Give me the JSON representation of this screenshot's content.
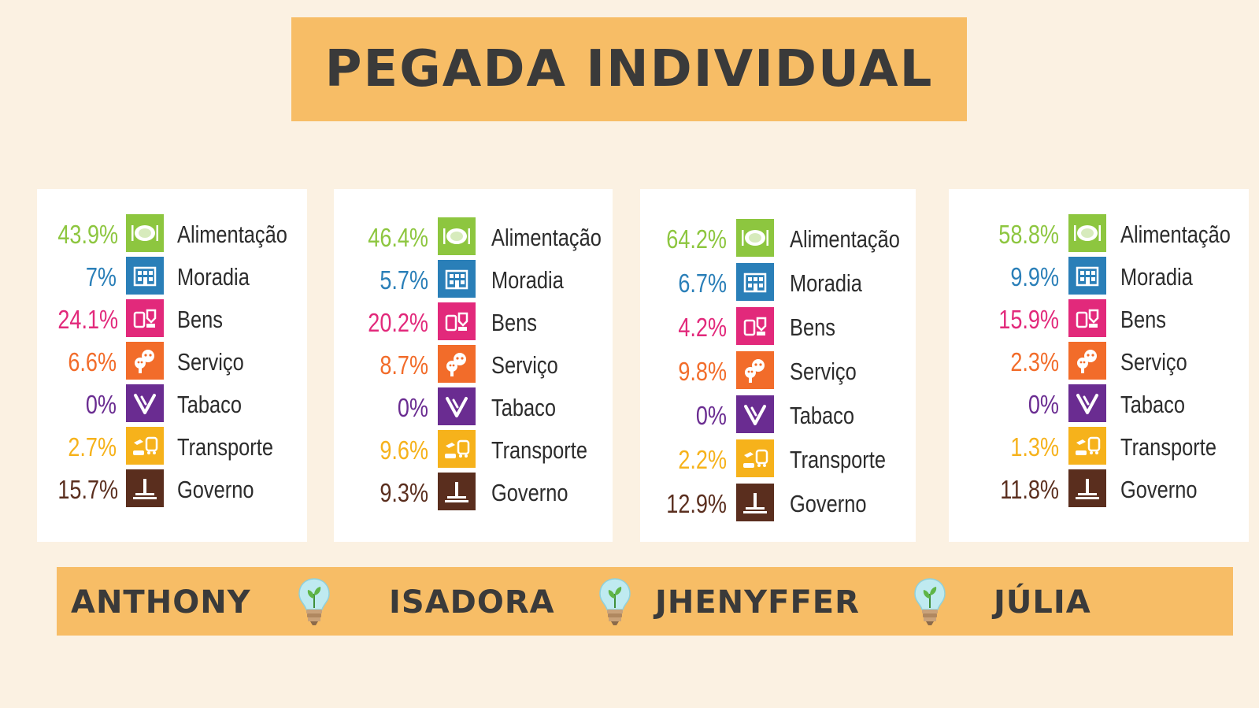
{
  "title": "PEGADA INDIVIDUAL",
  "colors": {
    "banner": "#f7bd66",
    "background": "#fbf1e2",
    "Alimentação": "#8dc63f",
    "Moradia": "#2a7fb8",
    "Bens": "#e2297b",
    "Serviço": "#f26c2a",
    "Tabaco": "#6a2c91",
    "Transporte": "#f6b21b",
    "Governo": "#5a2e1e"
  },
  "icons": {
    "Alimentação": "plate-icon",
    "Moradia": "building-icon",
    "Bens": "goods-icon",
    "Serviço": "theater-masks-icon",
    "Tabaco": "tobacco-icon",
    "Transporte": "transport-icon",
    "Governo": "government-icon"
  },
  "names": [
    "ANTHONY",
    "ISADORA",
    "JHENYFFER",
    "JÚLIA"
  ],
  "chart_data": [
    {
      "type": "table",
      "person": "ANTHONY",
      "categories": [
        "Alimentação",
        "Moradia",
        "Bens",
        "Serviço",
        "Tabaco",
        "Transporte",
        "Governo"
      ],
      "labels": [
        "43.9%",
        "7%",
        "24.1%",
        "6.6%",
        "0%",
        "2.7%",
        "15.7%"
      ],
      "values": [
        43.9,
        7,
        24.1,
        6.6,
        0,
        2.7,
        15.7
      ]
    },
    {
      "type": "table",
      "person": "ISADORA",
      "categories": [
        "Alimentação",
        "Moradia",
        "Bens",
        "Serviço",
        "Tabaco",
        "Transporte",
        "Governo"
      ],
      "labels": [
        "46.4%",
        "5.7%",
        "20.2%",
        "8.7%",
        "0%",
        "9.6%",
        "9.3%"
      ],
      "values": [
        46.4,
        5.7,
        20.2,
        8.7,
        0,
        9.6,
        9.3
      ]
    },
    {
      "type": "table",
      "person": "JHENYFFER",
      "categories": [
        "Alimentação",
        "Moradia",
        "Bens",
        "Serviço",
        "Tabaco",
        "Transporte",
        "Governo"
      ],
      "labels": [
        "64.2%",
        "6.7%",
        "4.2%",
        "9.8%",
        "0%",
        "2.2%",
        "12.9%"
      ],
      "values": [
        64.2,
        6.7,
        4.2,
        9.8,
        0,
        2.2,
        12.9
      ]
    },
    {
      "type": "table",
      "person": "JÚLIA",
      "categories": [
        "Alimentação",
        "Moradia",
        "Bens",
        "Serviço",
        "Tabaco",
        "Transporte",
        "Governo"
      ],
      "labels": [
        "58.8%",
        "9.9%",
        "15.9%",
        "2.3%",
        "0%",
        "1.3%",
        "11.8%"
      ],
      "values": [
        58.8,
        9.9,
        15.9,
        2.3,
        0,
        1.3,
        11.8
      ]
    }
  ]
}
